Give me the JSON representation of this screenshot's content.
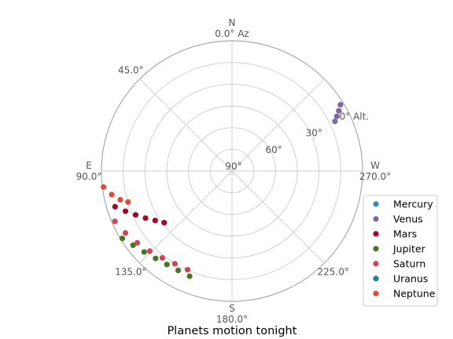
{
  "chart_data": {
    "type": "scatter",
    "projection": "polar",
    "title": "Planets motion tonight",
    "azimuth_orientation": "south at bottom, azimuth increasing clockwise (E left, W right)",
    "radial_axis": {
      "min": 0,
      "max": 90,
      "inverted": true,
      "grid_step": 15,
      "labels": [
        {
          "text": "0° Alt.",
          "value": 0
        },
        {
          "text": "30°",
          "value": 30
        },
        {
          "text": "60°",
          "value": 60
        },
        {
          "text": "90°",
          "value": 90
        }
      ]
    },
    "azimuth_labels": [
      {
        "text": "N\n0.0° Az",
        "az": 0
      },
      {
        "text": "45.0°",
        "az": 45
      },
      {
        "text": "E\n90.0°",
        "az": 90
      },
      {
        "text": "135.0°",
        "az": 135
      },
      {
        "text": "S\n180.0°",
        "az": 180
      },
      {
        "text": "225.0°",
        "az": 225
      },
      {
        "text": "W\n270.0°",
        "az": 270
      }
    ],
    "grid": true,
    "legend_position": "bottom-right",
    "series": [
      {
        "name": "Mercury",
        "color": "#348abd",
        "points": []
      },
      {
        "name": "Venus",
        "color": "#7a68a6",
        "points": [
          {
            "az": 301.5,
            "alt": 2.3
          },
          {
            "az": 299.5,
            "alt": 5.4
          },
          {
            "az": 297.6,
            "alt": 8.4
          },
          {
            "az": 295.8,
            "alt": 11.2
          }
        ]
      },
      {
        "name": "Mars",
        "color": "#a60628",
        "points": [
          {
            "az": 107.0,
            "alt": 5.7
          },
          {
            "az": 110.7,
            "alt": 11.5
          },
          {
            "az": 114.5,
            "alt": 17.0
          },
          {
            "az": 118.6,
            "alt": 22.1
          },
          {
            "az": 122.8,
            "alt": 27.0
          },
          {
            "az": 127.3,
            "alt": 31.2
          }
        ]
      },
      {
        "name": "Jupiter",
        "color": "#467821",
        "points": [
          {
            "az": 121.6,
            "alt": 1.2
          },
          {
            "az": 126.9,
            "alt": 4.7
          },
          {
            "az": 132.7,
            "alt": 7.6
          },
          {
            "az": 138.9,
            "alt": 9.9
          },
          {
            "az": 145.2,
            "alt": 11.4
          },
          {
            "az": 151.6,
            "alt": 12.0
          },
          {
            "az": 158.1,
            "alt": 11.7
          }
        ]
      },
      {
        "name": "Saturn",
        "color": "#cf4457",
        "points": [
          {
            "az": 113.3,
            "alt": 2.1
          },
          {
            "az": 120.2,
            "alt": 5.0
          },
          {
            "az": 127.2,
            "alt": 8.0
          },
          {
            "az": 134.3,
            "alt": 10.8
          },
          {
            "az": 141.3,
            "alt": 13.2
          },
          {
            "az": 148.4,
            "alt": 14.8
          },
          {
            "az": 155.8,
            "alt": 15.3
          }
        ]
      },
      {
        "name": "Uranus",
        "color": "#188487",
        "points": []
      },
      {
        "name": "Neptune",
        "color": "#e24a33",
        "points": [
          {
            "az": 97.1,
            "alt": 0.8
          },
          {
            "az": 101.1,
            "alt": 5.5
          },
          {
            "az": 104.4,
            "alt": 10.5
          },
          {
            "az": 106.6,
            "alt": 15.2
          }
        ]
      }
    ]
  }
}
